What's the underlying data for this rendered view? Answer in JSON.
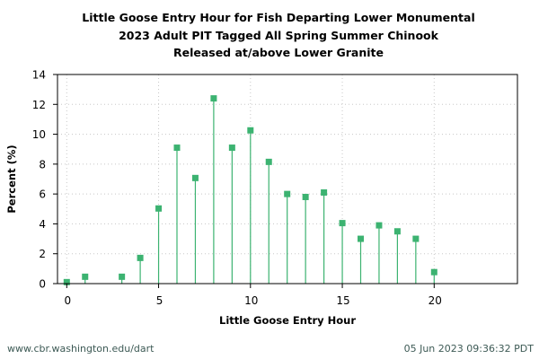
{
  "chart_data": {
    "type": "stem",
    "title": "Little Goose Entry Hour for Fish Departing Lower Monumental",
    "subtitle_lines": [
      "2023 Adult PIT Tagged All Spring Summer Chinook",
      "Released at/above Lower Granite"
    ],
    "xlabel": "Little Goose Entry Hour",
    "ylabel": "Percent (%)",
    "xlim": [
      -0.5,
      24
    ],
    "ylim": [
      0,
      14
    ],
    "xticks": [
      0,
      5,
      10,
      15,
      20
    ],
    "yticks": [
      0,
      2,
      4,
      6,
      8,
      10,
      12,
      14
    ],
    "grid": true,
    "x": [
      0,
      1,
      3,
      4,
      5,
      6,
      7,
      8,
      9,
      10,
      11,
      12,
      13,
      14,
      15,
      16,
      17,
      18,
      19,
      20
    ],
    "values": [
      0.1,
      0.46,
      0.46,
      1.72,
      5.03,
      9.1,
      7.07,
      12.4,
      9.1,
      10.26,
      8.15,
      6.0,
      5.8,
      6.1,
      4.05,
      3.0,
      3.9,
      3.5,
      3.0,
      0.77
    ],
    "series_color": "#3cb371"
  },
  "title": {
    "line1": "Little Goose Entry Hour for Fish Departing Lower Monumental",
    "line2": "2023 Adult PIT Tagged All Spring Summer Chinook",
    "line3": "Released at/above Lower Granite"
  },
  "footer": {
    "source": "www.cbr.washington.edu/dart",
    "timestamp": "05 Jun 2023 09:36:32 PDT"
  }
}
